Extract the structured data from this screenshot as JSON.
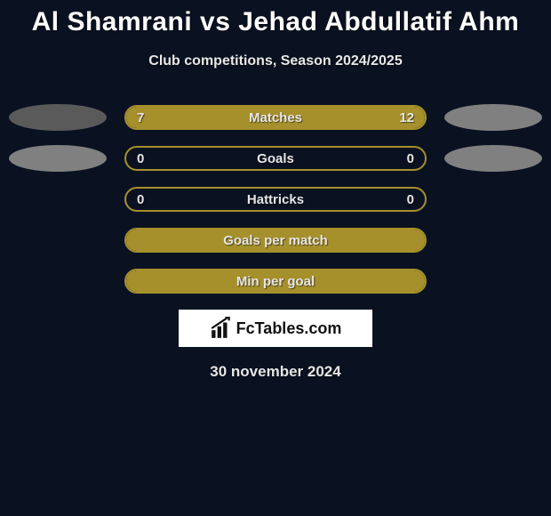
{
  "background_color": "#0a1222",
  "title": "Al Shamrani vs Jehad Abdullatif Ahm",
  "title_color": "#ffffff",
  "title_fontsize": 30,
  "subtitle": "Club competitions, Season 2024/2025",
  "subtitle_color": "#e8e8e8",
  "subtitle_fontsize": 16,
  "placeholder_left_color": "#5a5a5a",
  "placeholder_right_color": "#808080",
  "bars": [
    {
      "label": "Matches",
      "left_value": "7",
      "right_value": "12",
      "left_pct": 37,
      "right_pct": 63,
      "border_color": "#a6902c",
      "left_fill": "#a6902c",
      "right_fill": "#a6902c",
      "has_left_placeholder": true,
      "has_right_placeholder": true,
      "placeholder_left_color": "#5a5a5a",
      "placeholder_right_color": "#808080"
    },
    {
      "label": "Goals",
      "left_value": "0",
      "right_value": "0",
      "left_pct": 0,
      "right_pct": 0,
      "border_color": "#a6902c",
      "left_fill": "#a6902c",
      "right_fill": "#a6902c",
      "has_left_placeholder": true,
      "has_right_placeholder": true,
      "placeholder_left_color": "#808080",
      "placeholder_right_color": "#808080"
    },
    {
      "label": "Hattricks",
      "left_value": "0",
      "right_value": "0",
      "left_pct": 0,
      "right_pct": 0,
      "border_color": "#a6902c",
      "left_fill": "#a6902c",
      "right_fill": "#a6902c",
      "has_left_placeholder": false,
      "has_right_placeholder": false
    },
    {
      "label": "Goals per match",
      "left_value": "",
      "right_value": "",
      "left_pct": 100,
      "right_pct": 0,
      "border_color": "#a6902c",
      "left_fill": "#a6902c",
      "right_fill": "#a6902c",
      "has_left_placeholder": false,
      "has_right_placeholder": false
    },
    {
      "label": "Min per goal",
      "left_value": "",
      "right_value": "",
      "left_pct": 100,
      "right_pct": 0,
      "border_color": "#a6902c",
      "left_fill": "#a6902c",
      "right_fill": "#a6902c",
      "has_left_placeholder": false,
      "has_right_placeholder": false
    }
  ],
  "label_color": "#e6e6e6",
  "label_fontsize": 15,
  "logo_text": "FcTables.com",
  "logo_bg": "#ffffff",
  "logo_text_color": "#111111",
  "date_text": "30 november 2024",
  "date_color": "#e6e6e6",
  "date_fontsize": 17
}
